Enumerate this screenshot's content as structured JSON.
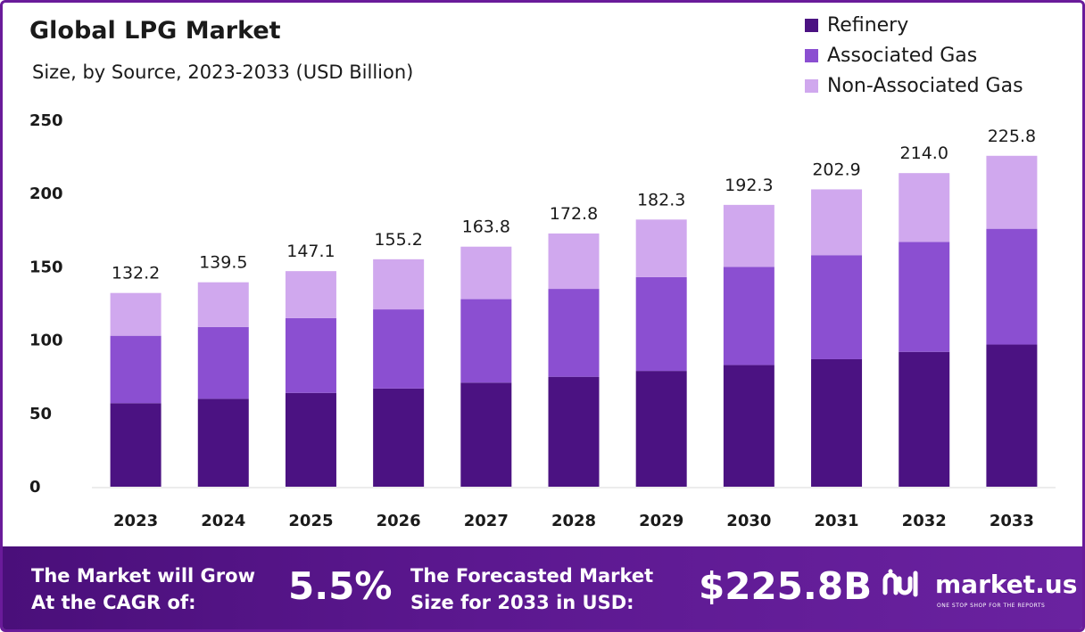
{
  "header": {
    "title": "Global LPG Market",
    "subtitle": "Size, by Source, 2023-2033 (USD Billion)"
  },
  "legend": [
    {
      "label": "Refinery",
      "color": "#4b1282"
    },
    {
      "label": "Associated Gas",
      "color": "#8b4fd1"
    },
    {
      "label": "Non-Associated Gas",
      "color": "#d0a8ee"
    }
  ],
  "chart_data": {
    "type": "bar",
    "stacked": true,
    "categories": [
      "2023",
      "2024",
      "2025",
      "2026",
      "2027",
      "2028",
      "2029",
      "2030",
      "2031",
      "2032",
      "2033"
    ],
    "series": [
      {
        "name": "Refinery",
        "color": "#4b1282",
        "values": [
          57,
          60,
          64,
          67,
          71,
          75,
          79,
          83,
          87,
          92,
          97
        ]
      },
      {
        "name": "Associated Gas",
        "color": "#8b4fd1",
        "values": [
          46,
          49,
          51,
          54,
          57,
          60,
          64,
          67,
          71,
          75,
          79
        ]
      },
      {
        "name": "Non-Associated Gas",
        "color": "#d0a8ee",
        "values": [
          29.2,
          30.5,
          32.1,
          34.2,
          35.8,
          37.8,
          39.3,
          42.3,
          44.9,
          47.0,
          49.8
        ]
      }
    ],
    "totals": [
      "132.2",
      "139.5",
      "147.1",
      "155.2",
      "163.8",
      "172.8",
      "182.3",
      "192.3",
      "202.9",
      "214.0",
      "225.8"
    ],
    "yticks": [
      0,
      50,
      100,
      150,
      200,
      250
    ],
    "ylim": [
      0,
      250
    ],
    "xlabel": "",
    "ylabel": "",
    "grid": false,
    "legend_position": "top-right"
  },
  "footer": {
    "cagr_label": "The Market will Grow At the CAGR of:",
    "cagr_value": "5.5%",
    "forecast_label": "The Forecasted Market Size for 2033 in USD:",
    "forecast_value": "$225.8B",
    "brand_name": "market.us",
    "brand_tagline": "ONE STOP SHOP FOR THE REPORTS"
  }
}
